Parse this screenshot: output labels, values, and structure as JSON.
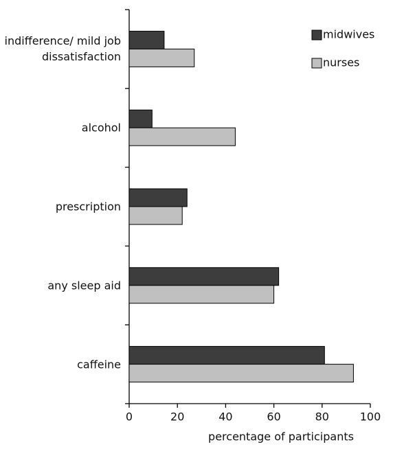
{
  "chart_data": {
    "type": "hbar",
    "categories": [
      "indifference/ mild job dissatisfaction",
      "alcohol",
      "prescription",
      "any sleep aid",
      "caffeine"
    ],
    "series": [
      {
        "name": "midwives",
        "color": "#3d3d3d",
        "values": [
          14.5,
          9.5,
          24,
          62,
          81
        ]
      },
      {
        "name": "nurses",
        "color": "#c0c0c0",
        "values": [
          27,
          44,
          22,
          60,
          93
        ]
      }
    ],
    "xlim": [
      0,
      100
    ],
    "xticks": [
      0,
      20,
      40,
      60,
      80,
      100
    ],
    "xlabel": "percentage of participants",
    "legend": "upper right"
  }
}
